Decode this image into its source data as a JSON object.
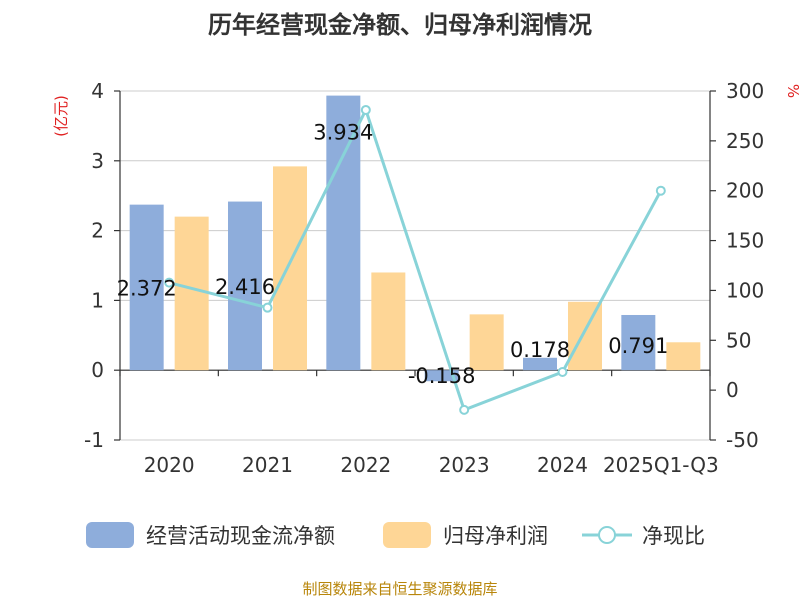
{
  "chart_data": {
    "type": "bar",
    "title": "历年经营现金净额、归母净利润情况",
    "categories": [
      "2020",
      "2021",
      "2022",
      "2023",
      "2024",
      "2025Q1-Q3"
    ],
    "left_axis": {
      "unit": "(亿元)",
      "ylim": [
        -1,
        4
      ],
      "ticks": [
        -1,
        0,
        1,
        2,
        3,
        4
      ]
    },
    "right_axis": {
      "unit": "%",
      "ylim": [
        -50,
        300
      ],
      "ticks": [
        -50,
        0,
        50,
        100,
        150,
        200,
        250,
        300
      ]
    },
    "series": [
      {
        "name": "经营活动现金流净额",
        "type": "bar",
        "axis": "left",
        "color": "#8eaddb",
        "values": [
          2.372,
          2.416,
          3.934,
          -0.158,
          0.178,
          0.791
        ],
        "labels": [
          "2.372",
          "2.416",
          "3.934",
          "-0.158",
          "0.178",
          "0.791"
        ]
      },
      {
        "name": "归母净利润",
        "type": "bar",
        "axis": "left",
        "color": "#fed696",
        "values": [
          2.2,
          2.92,
          1.4,
          0.8,
          0.98,
          0.4
        ]
      },
      {
        "name": "净现比",
        "type": "line",
        "axis": "right",
        "color": "#88d3d8",
        "values": [
          107.8,
          82.7,
          281.0,
          -19.8,
          18.2,
          200.0
        ]
      }
    ],
    "grid": true,
    "legend_position": "bottom"
  },
  "source": "制图数据来自恒生聚源数据库"
}
